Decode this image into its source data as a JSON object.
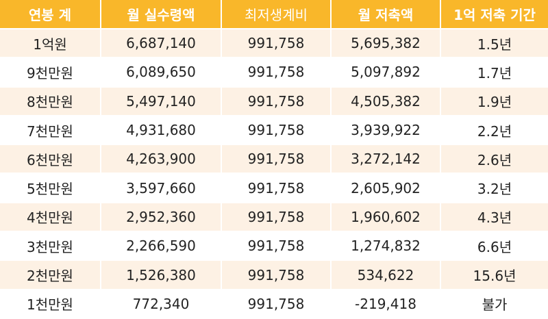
{
  "headers": [
    "연봉 계",
    "월 실수령액",
    "최저생계비",
    "월 저축액",
    "1억 저축 기간"
  ],
  "rows": [
    [
      "1억원",
      "6,687,140",
      "991,758",
      "5,695,382",
      "1.5년"
    ],
    [
      "9천만원",
      "6,089,650",
      "991,758",
      "5,097,892",
      "1.7년"
    ],
    [
      "8천만원",
      "5,497,140",
      "991,758",
      "4,505,382",
      "1.9년"
    ],
    [
      "7천만원",
      "4,931,680",
      "991,758",
      "3,939,922",
      "2.2년"
    ],
    [
      "6천만원",
      "4,263,900",
      "991,758",
      "3,272,142",
      "2.6년"
    ],
    [
      "5천만원",
      "3,597,660",
      "991,758",
      "2,605,902",
      "3.2년"
    ],
    [
      "4천만원",
      "2,952,360",
      "991,758",
      "1,960,602",
      "4.3년"
    ],
    [
      "3천만원",
      "2,266,590",
      "991,758",
      "1,274,832",
      "6.6년"
    ],
    [
      "2천만원",
      "1,526,380",
      "991,758",
      "534,622",
      "15.6년"
    ],
    [
      "1천만원",
      "772,340",
      "991,758",
      "-219,418",
      "불가"
    ]
  ],
  "colors": {
    "header_bg": "#f9b72a",
    "header_text": "#ffffff",
    "row_alt_bg": "#fdf1e4",
    "row_bg": "#ffffff"
  }
}
